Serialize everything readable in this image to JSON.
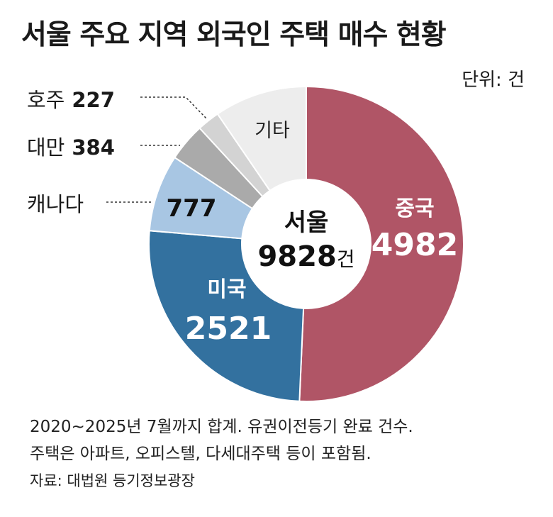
{
  "title": "서울 주요 지역 외국인 주택 매수 현황",
  "unit_label": "단위: 건",
  "notes": {
    "line1": "2020~2025년 7월까지 합계. 유권이전등기 완료 건수.",
    "line2": "주택은 아파트, 오피스텔, 다세대주택 등이 포함됨.",
    "source": "자료: 대법원 등기정보광장"
  },
  "chart_data": {
    "type": "pie",
    "center_label": {
      "name": "서울",
      "total": "9828",
      "unit": "건"
    },
    "slices": [
      {
        "label": "중국",
        "value": 4982,
        "color": "#b05566"
      },
      {
        "label": "미국",
        "value": 2521,
        "color": "#33719f"
      },
      {
        "label": "캐나다",
        "value": 777,
        "color": "#a8c6e3"
      },
      {
        "label": "대만",
        "value": 384,
        "color": "#aaaaaa"
      },
      {
        "label": "호주",
        "value": 227,
        "color": "#d3d3d3"
      },
      {
        "label": "기타",
        "value": 937,
        "color": "#ededed"
      }
    ]
  }
}
